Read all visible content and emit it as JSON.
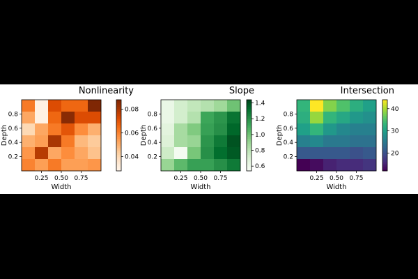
{
  "chart_data": [
    {
      "type": "heatmap",
      "title": "Nonlinearity",
      "xlabel": "Width",
      "ylabel": "Depth",
      "xticks": [
        "0.25",
        "0.50",
        "0.75"
      ],
      "yticks": [
        "0.2",
        "0.4",
        "0.6",
        "0.8"
      ],
      "colormap": "Oranges",
      "colorbar": {
        "min": 0.028,
        "max": 0.088,
        "ticks": [
          "0.04",
          "0.06",
          "0.08"
        ],
        "tick_values": [
          0.04,
          0.06,
          0.08
        ]
      },
      "grid_rows_top_to_bottom": [
        [
          0.062,
          0.03,
          0.072,
          0.066,
          0.066,
          0.088
        ],
        [
          0.052,
          0.03,
          0.066,
          0.086,
          0.072,
          0.072
        ],
        [
          0.04,
          0.052,
          0.062,
          0.07,
          0.058,
          0.05
        ],
        [
          0.05,
          0.054,
          0.08,
          0.062,
          0.048,
          0.044
        ],
        [
          0.056,
          0.078,
          0.052,
          0.058,
          0.052,
          0.046
        ],
        [
          0.06,
          0.054,
          0.062,
          0.054,
          0.054,
          0.056
        ]
      ]
    },
    {
      "type": "heatmap",
      "title": "Slope",
      "xlabel": "Width",
      "ylabel": "Depth",
      "xticks": [
        "0.25",
        "0.50",
        "0.75"
      ],
      "yticks": [
        "0.2",
        "0.4",
        "0.6",
        "0.8"
      ],
      "colormap": "Greens",
      "colorbar": {
        "min": 0.54,
        "max": 1.44,
        "ticks": [
          "0.6",
          "0.8",
          "1.0",
          "1.2",
          "1.4"
        ],
        "tick_values": [
          0.6,
          0.8,
          1.0,
          1.2,
          1.4
        ]
      },
      "grid_rows_top_to_bottom": [
        [
          0.62,
          0.72,
          0.78,
          0.82,
          0.88,
          1.0
        ],
        [
          0.62,
          0.72,
          0.82,
          1.12,
          1.18,
          1.3
        ],
        [
          0.66,
          0.86,
          0.96,
          1.14,
          1.2,
          1.34
        ],
        [
          0.68,
          0.86,
          0.9,
          1.18,
          1.28,
          1.4
        ],
        [
          0.74,
          0.56,
          0.98,
          1.2,
          1.32,
          1.38
        ],
        [
          0.9,
          1.04,
          1.14,
          1.14,
          1.2,
          1.28
        ]
      ]
    },
    {
      "type": "heatmap",
      "title": "Intersection",
      "xlabel": "Width",
      "ylabel": "Depth",
      "xticks": [
        "0.25",
        "0.50",
        "0.75"
      ],
      "yticks": [
        "0.2",
        "0.4",
        "0.6",
        "0.8"
      ],
      "colormap": "viridis",
      "colorbar": {
        "min": 12,
        "max": 44,
        "ticks": [
          "20",
          "30",
          "40"
        ],
        "tick_values": [
          20,
          30,
          40
        ]
      },
      "grid_rows_top_to_bottom": [
        [
          33,
          44,
          38,
          35,
          32,
          30
        ],
        [
          32,
          39,
          33,
          31,
          29,
          28
        ],
        [
          30,
          33,
          29,
          27,
          26,
          26
        ],
        [
          26,
          27,
          25,
          25,
          24,
          24
        ],
        [
          21,
          21,
          21,
          21,
          20,
          21
        ],
        [
          12,
          13,
          15,
          16,
          16,
          17
        ]
      ]
    }
  ]
}
